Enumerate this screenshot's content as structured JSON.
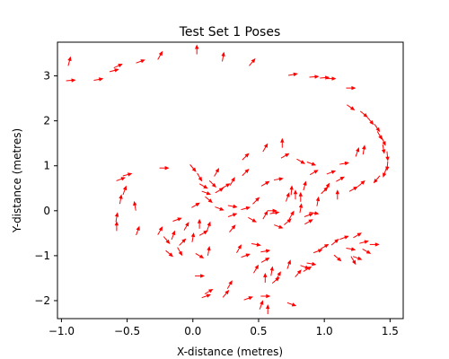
{
  "chart_data": {
    "type": "scatter",
    "marker": "arrow",
    "title": "Test Set 1 Poses",
    "xlabel": "X-distance (metres)",
    "ylabel": "Y-distance (metres)",
    "xlim": [
      -1.03,
      1.6
    ],
    "ylim": [
      -2.4,
      3.75
    ],
    "xticks": [
      -1.0,
      -0.5,
      0.0,
      0.5,
      1.0,
      1.5
    ],
    "xtick_labels": [
      "−1.0",
      "−0.5",
      "0.0",
      "0.5",
      "1.0",
      "1.5"
    ],
    "yticks": [
      -2,
      -1,
      0,
      1,
      2,
      3
    ],
    "ytick_labels": [
      "−2",
      "−1",
      "0",
      "1",
      "2",
      "3"
    ],
    "grid": false,
    "legend": "none",
    "color": "#ff0000",
    "series": [
      {
        "points": [
          {
            "x": -0.94,
            "y": 3.32,
            "a": 75
          },
          {
            "x": -0.93,
            "y": 2.9,
            "a": 5
          },
          {
            "x": -0.72,
            "y": 2.92,
            "a": 10
          },
          {
            "x": -0.6,
            "y": 3.12,
            "a": 15
          },
          {
            "x": -0.57,
            "y": 3.22,
            "a": 25
          },
          {
            "x": -0.4,
            "y": 3.32,
            "a": 20
          },
          {
            "x": -0.25,
            "y": 3.45,
            "a": 60
          },
          {
            "x": 0.03,
            "y": 3.58,
            "a": 90
          },
          {
            "x": 0.23,
            "y": 3.42,
            "a": 80
          },
          {
            "x": 0.45,
            "y": 3.3,
            "a": 50
          },
          {
            "x": 0.76,
            "y": 3.03,
            "a": 10
          },
          {
            "x": 0.92,
            "y": 2.98,
            "a": 5
          },
          {
            "x": 1.0,
            "y": 2.96,
            "a": 5
          },
          {
            "x": 1.05,
            "y": 2.94,
            "a": 0
          },
          {
            "x": 1.2,
            "y": 2.73,
            "a": 0
          },
          {
            "x": 1.2,
            "y": 2.3,
            "a": -35
          },
          {
            "x": 1.3,
            "y": 2.15,
            "a": -40
          },
          {
            "x": 1.35,
            "y": 2.0,
            "a": -50
          },
          {
            "x": 1.4,
            "y": 1.85,
            "a": -55
          },
          {
            "x": 1.42,
            "y": 1.68,
            "a": -60
          },
          {
            "x": 1.45,
            "y": 1.55,
            "a": -65
          },
          {
            "x": 1.45,
            "y": 1.38,
            "a": -80
          },
          {
            "x": 1.48,
            "y": 1.22,
            "a": -85
          },
          {
            "x": 1.48,
            "y": 1.0,
            "a": -95
          },
          {
            "x": 1.46,
            "y": 0.85,
            "a": -110
          },
          {
            "x": 1.4,
            "y": 0.7,
            "a": -130
          },
          {
            "x": 1.3,
            "y": 1.35,
            "a": 80
          },
          {
            "x": 1.28,
            "y": 0.6,
            "a": 40
          },
          {
            "x": 1.22,
            "y": 0.48,
            "a": 30
          },
          {
            "x": 1.25,
            "y": 1.3,
            "a": 70
          },
          {
            "x": 1.15,
            "y": 1.05,
            "a": 10
          },
          {
            "x": 1.05,
            "y": 0.85,
            "a": 20
          },
          {
            "x": 1.02,
            "y": 0.52,
            "a": 60
          },
          {
            "x": 1.0,
            "y": 0.45,
            "a": 45
          },
          {
            "x": 1.1,
            "y": 0.35,
            "a": 90
          },
          {
            "x": 1.12,
            "y": 0.7,
            "a": 30
          },
          {
            "x": 0.9,
            "y": 1.05,
            "a": -20
          },
          {
            "x": 0.82,
            "y": 1.1,
            "a": -30
          },
          {
            "x": 0.7,
            "y": 1.22,
            "a": 30
          },
          {
            "x": 0.68,
            "y": 1.5,
            "a": 90
          },
          {
            "x": 0.55,
            "y": 1.4,
            "a": 60
          },
          {
            "x": 0.4,
            "y": 1.2,
            "a": 45
          },
          {
            "x": 0.92,
            "y": 0.85,
            "a": 30
          },
          {
            "x": 0.85,
            "y": 0.55,
            "a": 75
          },
          {
            "x": 0.75,
            "y": 0.45,
            "a": 85
          },
          {
            "x": 0.78,
            "y": 0.35,
            "a": 90
          },
          {
            "x": 0.72,
            "y": 0.3,
            "a": 70
          },
          {
            "x": 0.65,
            "y": 0.7,
            "a": 10
          },
          {
            "x": 0.55,
            "y": 0.6,
            "a": 30
          },
          {
            "x": 0.4,
            "y": 0.85,
            "a": 45
          },
          {
            "x": 0.3,
            "y": 0.65,
            "a": 60
          },
          {
            "x": 0.2,
            "y": 0.45,
            "a": 30
          },
          {
            "x": 0.1,
            "y": 0.4,
            "a": -20
          },
          {
            "x": 0.0,
            "y": 0.95,
            "a": -50
          },
          {
            "x": 0.05,
            "y": 0.75,
            "a": -60
          },
          {
            "x": 0.08,
            "y": 0.55,
            "a": -30
          },
          {
            "x": 0.15,
            "y": 0.6,
            "a": -45
          },
          {
            "x": 0.18,
            "y": 0.85,
            "a": 60
          },
          {
            "x": 0.25,
            "y": 0.55,
            "a": 30
          },
          {
            "x": 0.3,
            "y": 0.1,
            "a": -10
          },
          {
            "x": 0.4,
            "y": 0.05,
            "a": 15
          },
          {
            "x": 0.48,
            "y": 0.22,
            "a": 45
          },
          {
            "x": 0.45,
            "y": -0.2,
            "a": -30
          },
          {
            "x": 0.55,
            "y": -0.1,
            "a": 60
          },
          {
            "x": 0.6,
            "y": 0.0,
            "a": 0
          },
          {
            "x": 0.62,
            "y": -0.05,
            "a": 10
          },
          {
            "x": 0.65,
            "y": -0.35,
            "a": -20
          },
          {
            "x": 0.72,
            "y": -0.25,
            "a": 40
          },
          {
            "x": 0.75,
            "y": -0.1,
            "a": 60
          },
          {
            "x": 0.82,
            "y": 0.05,
            "a": 80
          },
          {
            "x": 0.88,
            "y": -0.1,
            "a": 20
          },
          {
            "x": 0.92,
            "y": -0.05,
            "a": -10
          },
          {
            "x": 0.88,
            "y": -0.25,
            "a": 30
          },
          {
            "x": 0.2,
            "y": 0.05,
            "a": -20
          },
          {
            "x": 0.12,
            "y": 0.25,
            "a": -40
          },
          {
            "x": 0.02,
            "y": 0.12,
            "a": 30
          },
          {
            "x": -0.12,
            "y": -0.2,
            "a": 20
          },
          {
            "x": -0.05,
            "y": -0.35,
            "a": 60
          },
          {
            "x": 0.05,
            "y": -0.3,
            "a": 90
          },
          {
            "x": 0.12,
            "y": -0.35,
            "a": 70
          },
          {
            "x": -0.22,
            "y": 0.95,
            "a": 0
          },
          {
            "x": -0.5,
            "y": 0.8,
            "a": 15
          },
          {
            "x": -0.55,
            "y": 0.7,
            "a": 20
          },
          {
            "x": -0.52,
            "y": 0.45,
            "a": 70
          },
          {
            "x": -0.55,
            "y": 0.25,
            "a": 80
          },
          {
            "x": -0.44,
            "y": 0.1,
            "a": 100
          },
          {
            "x": -0.58,
            "y": -0.15,
            "a": 80
          },
          {
            "x": -0.58,
            "y": -0.35,
            "a": 90
          },
          {
            "x": -0.42,
            "y": -0.45,
            "a": 70
          },
          {
            "x": -0.2,
            "y": -0.65,
            "a": -50
          },
          {
            "x": -0.15,
            "y": -0.55,
            "a": 70
          },
          {
            "x": -0.08,
            "y": -0.7,
            "a": 45
          },
          {
            "x": 0.0,
            "y": -0.6,
            "a": 80
          },
          {
            "x": 0.08,
            "y": -0.5,
            "a": 30
          },
          {
            "x": 0.12,
            "y": -0.9,
            "a": 80
          },
          {
            "x": 0.05,
            "y": -1.0,
            "a": -30
          },
          {
            "x": -0.1,
            "y": -0.9,
            "a": -60
          },
          {
            "x": -0.18,
            "y": -0.95,
            "a": -40
          },
          {
            "x": 0.3,
            "y": -0.4,
            "a": 50
          },
          {
            "x": 0.35,
            "y": -0.85,
            "a": 60
          },
          {
            "x": 0.4,
            "y": -1.0,
            "a": 20
          },
          {
            "x": 0.48,
            "y": -0.75,
            "a": -10
          },
          {
            "x": 0.55,
            "y": -0.9,
            "a": 10
          },
          {
            "x": 0.55,
            "y": -1.1,
            "a": 30
          },
          {
            "x": 0.6,
            "y": -1.35,
            "a": 80
          },
          {
            "x": 0.55,
            "y": -1.5,
            "a": 90
          },
          {
            "x": 0.65,
            "y": -1.45,
            "a": 60
          },
          {
            "x": 0.73,
            "y": -1.2,
            "a": 70
          },
          {
            "x": 0.85,
            "y": -1.25,
            "a": -20
          },
          {
            "x": 0.9,
            "y": -1.18,
            "a": -10
          },
          {
            "x": 0.87,
            "y": -1.3,
            "a": 30
          },
          {
            "x": 0.8,
            "y": -1.4,
            "a": 50
          },
          {
            "x": 0.95,
            "y": -0.9,
            "a": 20
          },
          {
            "x": 1.0,
            "y": -0.8,
            "a": 30
          },
          {
            "x": 1.08,
            "y": -0.7,
            "a": 40
          },
          {
            "x": 1.15,
            "y": -0.6,
            "a": 20
          },
          {
            "x": 1.25,
            "y": -0.55,
            "a": 30
          },
          {
            "x": 1.3,
            "y": -0.7,
            "a": 15
          },
          {
            "x": 1.32,
            "y": -0.9,
            "a": -30
          },
          {
            "x": 1.25,
            "y": -1.05,
            "a": -20
          },
          {
            "x": 1.1,
            "y": -1.05,
            "a": -40
          },
          {
            "x": 1.2,
            "y": -0.85,
            "a": -10
          },
          {
            "x": 1.38,
            "y": -0.75,
            "a": 0
          },
          {
            "x": 1.22,
            "y": -1.1,
            "a": -60
          },
          {
            "x": -0.25,
            "y": -0.45,
            "a": 60
          },
          {
            "x": 0.05,
            "y": -1.45,
            "a": 0
          },
          {
            "x": 0.12,
            "y": -1.8,
            "a": 30
          },
          {
            "x": 0.1,
            "y": -1.9,
            "a": 20
          },
          {
            "x": 0.25,
            "y": -1.85,
            "a": 50
          },
          {
            "x": 0.28,
            "y": -1.65,
            "a": 60
          },
          {
            "x": 0.42,
            "y": -1.95,
            "a": 20
          },
          {
            "x": 0.55,
            "y": -1.9,
            "a": 0
          },
          {
            "x": 0.52,
            "y": -2.1,
            "a": 70
          },
          {
            "x": 0.57,
            "y": -2.2,
            "a": 90
          },
          {
            "x": 0.63,
            "y": -1.55,
            "a": 40
          },
          {
            "x": 0.75,
            "y": -2.08,
            "a": -20
          },
          {
            "x": 0.48,
            "y": -1.3,
            "a": 60
          },
          {
            "x": 0.3,
            "y": -0.1,
            "a": 20
          },
          {
            "x": 0.95,
            "y": 0.2,
            "a": 80
          },
          {
            "x": 0.82,
            "y": 0.3,
            "a": 90
          }
        ]
      }
    ]
  }
}
